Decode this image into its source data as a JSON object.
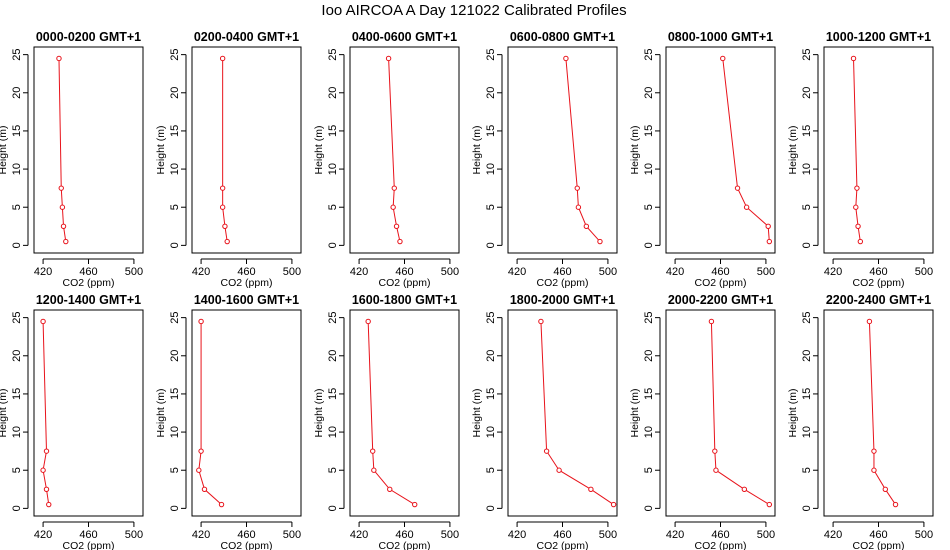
{
  "title": "Ioo AIRCOA A  Day 121022  Calibrated Profiles",
  "chart_data": [
    {
      "type": "line",
      "title": "0000-0200 GMT+1",
      "xlabel": "CO2 (ppm)",
      "ylabel": "Height (m)",
      "xlim": [
        412,
        508
      ],
      "ylim": [
        -1,
        26
      ],
      "xticks": [
        420,
        460,
        500
      ],
      "yticks": [
        0,
        5,
        10,
        15,
        20,
        25
      ],
      "series": [
        {
          "x": [
            440,
            438,
            437,
            436,
            434
          ],
          "y": [
            0.5,
            2.5,
            5,
            7.5,
            24.5
          ]
        }
      ]
    },
    {
      "type": "line",
      "title": "0200-0400 GMT+1",
      "xlabel": "CO2 (ppm)",
      "ylabel": "Height (m)",
      "xlim": [
        412,
        508
      ],
      "ylim": [
        -1,
        26
      ],
      "xticks": [
        420,
        460,
        500
      ],
      "yticks": [
        0,
        5,
        10,
        15,
        20,
        25
      ],
      "series": [
        {
          "x": [
            443,
            441,
            439,
            439,
            439
          ],
          "y": [
            0.5,
            2.5,
            5,
            7.5,
            24.5
          ]
        }
      ]
    },
    {
      "type": "line",
      "title": "0400-0600 GMT+1",
      "xlabel": "CO2 (ppm)",
      "ylabel": "Height (m)",
      "xlim": [
        412,
        508
      ],
      "ylim": [
        -1,
        26
      ],
      "xticks": [
        420,
        460,
        500
      ],
      "yticks": [
        0,
        5,
        10,
        15,
        20,
        25
      ],
      "series": [
        {
          "x": [
            456,
            453,
            450,
            451,
            446
          ],
          "y": [
            0.5,
            2.5,
            5,
            7.5,
            24.5
          ]
        }
      ]
    },
    {
      "type": "line",
      "title": "0600-0800 GMT+1",
      "xlabel": "CO2 (ppm)",
      "ylabel": "Height (m)",
      "xlim": [
        412,
        508
      ],
      "ylim": [
        -1,
        26
      ],
      "xticks": [
        420,
        460,
        500
      ],
      "yticks": [
        0,
        5,
        10,
        15,
        20,
        25
      ],
      "series": [
        {
          "x": [
            493,
            481,
            474,
            473,
            463
          ],
          "y": [
            0.5,
            2.5,
            5,
            7.5,
            24.5
          ]
        }
      ]
    },
    {
      "type": "line",
      "title": "0800-1000 GMT+1",
      "xlabel": "CO2 (ppm)",
      "ylabel": "Height (m)",
      "xlim": [
        412,
        508
      ],
      "ylim": [
        -1,
        26
      ],
      "xticks": [
        420,
        460,
        500
      ],
      "yticks": [
        0,
        5,
        10,
        15,
        20,
        25
      ],
      "series": [
        {
          "x": [
            503,
            502,
            483,
            475,
            462
          ],
          "y": [
            0.5,
            2.5,
            5,
            7.5,
            24.5
          ]
        }
      ]
    },
    {
      "type": "line",
      "title": "1000-1200 GMT+1",
      "xlabel": "CO2 (ppm)",
      "ylabel": "Height (m)",
      "xlim": [
        412,
        508
      ],
      "ylim": [
        -1,
        26
      ],
      "xticks": [
        420,
        460,
        500
      ],
      "yticks": [
        0,
        5,
        10,
        15,
        20,
        25
      ],
      "series": [
        {
          "x": [
            444,
            442,
            440,
            441,
            438
          ],
          "y": [
            0.5,
            2.5,
            5,
            7.5,
            24.5
          ]
        }
      ]
    },
    {
      "type": "line",
      "title": "1200-1400 GMT+1",
      "xlabel": "CO2 (ppm)",
      "ylabel": "Height (m)",
      "xlim": [
        412,
        508
      ],
      "ylim": [
        -1,
        26
      ],
      "xticks": [
        420,
        460,
        500
      ],
      "yticks": [
        0,
        5,
        10,
        15,
        20,
        25
      ],
      "series": [
        {
          "x": [
            425,
            423,
            420,
            423,
            420
          ],
          "y": [
            0.5,
            2.5,
            5,
            7.5,
            24.5
          ]
        }
      ]
    },
    {
      "type": "line",
      "title": "1400-1600 GMT+1",
      "xlabel": "CO2 (ppm)",
      "ylabel": "Height (m)",
      "xlim": [
        412,
        508
      ],
      "ylim": [
        -1,
        26
      ],
      "xticks": [
        420,
        460,
        500
      ],
      "yticks": [
        0,
        5,
        10,
        15,
        20,
        25
      ],
      "series": [
        {
          "x": [
            438,
            423,
            418,
            420,
            420
          ],
          "y": [
            0.5,
            2.5,
            5,
            7.5,
            24.5
          ]
        }
      ]
    },
    {
      "type": "line",
      "title": "1600-1800 GMT+1",
      "xlabel": "CO2 (ppm)",
      "ylabel": "Height (m)",
      "xlim": [
        412,
        508
      ],
      "ylim": [
        -1,
        26
      ],
      "xticks": [
        420,
        460,
        500
      ],
      "yticks": [
        0,
        5,
        10,
        15,
        20,
        25
      ],
      "series": [
        {
          "x": [
            469,
            447,
            433,
            432,
            428
          ],
          "y": [
            0.5,
            2.5,
            5,
            7.5,
            24.5
          ]
        }
      ]
    },
    {
      "type": "line",
      "title": "1800-2000 GMT+1",
      "xlabel": "CO2 (ppm)",
      "ylabel": "Height (m)",
      "xlim": [
        412,
        508
      ],
      "ylim": [
        -1,
        26
      ],
      "xticks": [
        420,
        460,
        500
      ],
      "yticks": [
        0,
        5,
        10,
        15,
        20,
        25
      ],
      "series": [
        {
          "x": [
            505,
            485,
            457,
            446,
            441
          ],
          "y": [
            0.5,
            2.5,
            5,
            7.5,
            24.5
          ]
        }
      ]
    },
    {
      "type": "line",
      "title": "2000-2200 GMT+1",
      "xlabel": "CO2 (ppm)",
      "ylabel": "Height (m)",
      "xlim": [
        412,
        508
      ],
      "ylim": [
        -1,
        26
      ],
      "xticks": [
        420,
        460,
        500
      ],
      "yticks": [
        0,
        5,
        10,
        15,
        20,
        25
      ],
      "series": [
        {
          "x": [
            503,
            481,
            456,
            455,
            452
          ],
          "y": [
            0.5,
            2.5,
            5,
            7.5,
            24.5
          ]
        }
      ]
    },
    {
      "type": "line",
      "title": "2200-2400 GMT+1",
      "xlabel": "CO2 (ppm)",
      "ylabel": "Height (m)",
      "xlim": [
        412,
        508
      ],
      "ylim": [
        -1,
        26
      ],
      "xticks": [
        420,
        460,
        500
      ],
      "yticks": [
        0,
        5,
        10,
        15,
        20,
        25
      ],
      "series": [
        {
          "x": [
            475,
            466,
            456,
            456,
            452
          ],
          "y": [
            0.5,
            2.5,
            5,
            7.5,
            24.5
          ]
        }
      ]
    }
  ]
}
